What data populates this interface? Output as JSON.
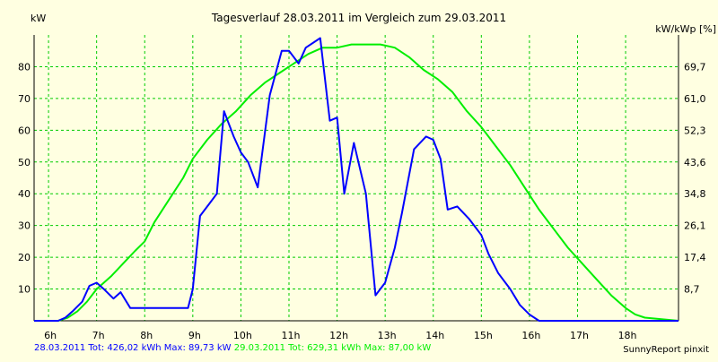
{
  "chart_data": {
    "type": "line",
    "title": "Tagesverlauf 28.03.2011 im Vergleich zum 29.03.2011",
    "left_axis_label": "kW",
    "right_axis_label": "kW/kWp [%]",
    "x_ticks": [
      "6h",
      "7h",
      "8h",
      "9h",
      "10h",
      "11h",
      "12h",
      "13h",
      "14h",
      "15h",
      "16h",
      "17h",
      "18h"
    ],
    "y_ticks": [
      10,
      20,
      30,
      40,
      50,
      60,
      70,
      80
    ],
    "y_right_ticks": [
      "8,7",
      "17,4",
      "26,1",
      "34,8",
      "43,6",
      "52,3",
      "61,0",
      "69,7"
    ],
    "xlim": [
      5.7,
      19.1
    ],
    "ylim": [
      0,
      90
    ],
    "grid": true,
    "series": [
      {
        "name": "28.03.2011",
        "color": "#0000ff",
        "x": [
          5.7,
          6.2,
          6.35,
          6.5,
          6.7,
          6.85,
          7.0,
          7.15,
          7.35,
          7.5,
          7.7,
          8.0,
          8.2,
          8.35,
          8.5,
          8.7,
          8.9,
          9.0,
          9.15,
          9.35,
          9.5,
          9.65,
          9.85,
          10.0,
          10.15,
          10.35,
          10.6,
          10.85,
          11.0,
          11.2,
          11.35,
          11.65,
          11.85,
          12.0,
          12.15,
          12.35,
          12.6,
          12.8,
          13.0,
          13.2,
          13.35,
          13.6,
          13.85,
          14.0,
          14.15,
          14.3,
          14.5,
          14.75,
          15.0,
          15.15,
          15.35,
          15.6,
          15.8,
          16.0,
          16.2,
          16.35,
          16.5,
          16.75,
          17.0,
          17.3,
          17.65,
          18.0,
          18.2,
          18.4,
          18.6,
          19.1
        ],
        "y": [
          0,
          0,
          1,
          3,
          6,
          11,
          12,
          10,
          7,
          9,
          4,
          4,
          4,
          4,
          4,
          4,
          4,
          10,
          33,
          37,
          40,
          66,
          58,
          53,
          50,
          42,
          71,
          85,
          85,
          81,
          86,
          89,
          63,
          64,
          40,
          56,
          40,
          8,
          12,
          23,
          34,
          54,
          58,
          57,
          51,
          35,
          36,
          32,
          27,
          21,
          15,
          10,
          5,
          2,
          0,
          0,
          0,
          0,
          0,
          0,
          0,
          0,
          0,
          0,
          0,
          0
        ]
      },
      {
        "name": "29.03.2011",
        "color": "#00ee00",
        "x": [
          5.7,
          6.2,
          6.4,
          6.6,
          6.8,
          7.0,
          7.3,
          7.55,
          7.8,
          8.0,
          8.2,
          8.5,
          8.8,
          9.0,
          9.3,
          9.6,
          9.9,
          10.2,
          10.5,
          10.8,
          11.1,
          11.4,
          11.7,
          12.0,
          12.3,
          12.6,
          12.9,
          13.2,
          13.5,
          13.8,
          14.1,
          14.4,
          14.7,
          15.0,
          15.3,
          15.6,
          15.9,
          16.2,
          16.5,
          16.8,
          17.1,
          17.4,
          17.7,
          18.0,
          18.2,
          18.4,
          19.1
        ],
        "y": [
          0,
          0,
          1,
          3,
          6,
          10,
          14,
          18,
          22,
          25,
          31,
          38,
          45,
          51,
          57,
          62,
          66,
          71,
          75,
          78,
          81,
          84,
          86,
          86,
          87,
          87,
          87,
          86,
          83,
          79,
          76,
          72,
          66,
          61,
          55,
          49,
          42,
          35,
          29,
          23,
          18,
          13,
          8,
          4,
          2,
          1,
          0
        ]
      }
    ],
    "footer": {
      "series1_text": "28.03.2011 Tot: 426,02 kWh Max: 89,73 kW",
      "series2_text": "29.03.2011 Tot: 629,31 kWh Max: 87,00 kW",
      "credit": "SunnyReport pinxit"
    },
    "colors": {
      "background": "#ffffe1",
      "grid": "#00cc00",
      "series1": "#0000ff",
      "series2": "#00ee00"
    }
  }
}
